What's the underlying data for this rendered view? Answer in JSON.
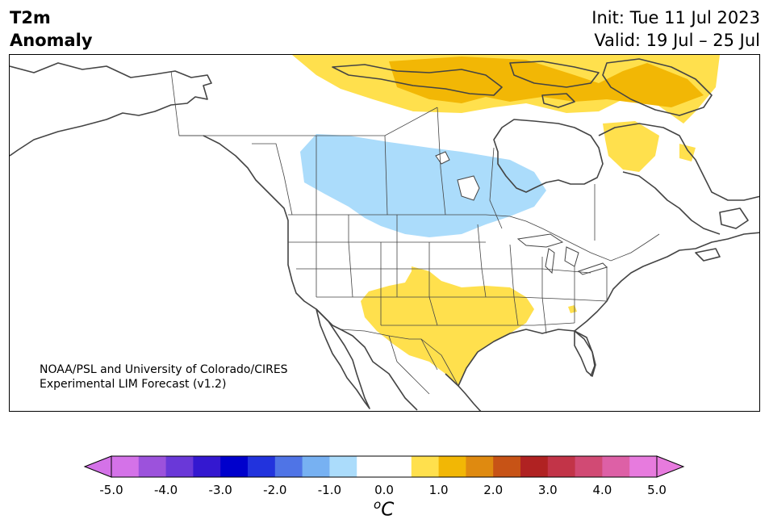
{
  "title": {
    "line1": "T2m",
    "line2": "Anomaly"
  },
  "dates": {
    "init": "Init: Tue 11 Jul 2023",
    "valid": "Valid: 19 Jul – 25 Jul"
  },
  "credit": {
    "line1": "NOAA/PSL and University of Colorado/CIRES",
    "line2": "Experimental LIM Forecast (v1.2)"
  },
  "colorbar": {
    "unit_base": "C",
    "unit_sup": "o",
    "ticks": [
      "-5.0",
      "-4.0",
      "-3.0",
      "-2.0",
      "-1.0",
      "0.0",
      "1.0",
      "2.0",
      "3.0",
      "4.0",
      "5.0"
    ],
    "colors": [
      "#d472e8",
      "#9c52dc",
      "#6a38d8",
      "#3418d0",
      "#0000cc",
      "#2233dd",
      "#4f74e6",
      "#77b1f2",
      "#abdcfb",
      "#ffffff",
      "#ffffff",
      "#ffe04d",
      "#f2b705",
      "#df8a10",
      "#c75316",
      "#b02222",
      "#c23448",
      "#d14a74",
      "#dd60a6",
      "#e77bde"
    ],
    "extend_low_color": "#d472e8",
    "extend_high_color": "#e77bde"
  },
  "anomaly_colors": {
    "cool": "#abdcfb",
    "warm1": "#ffe04d",
    "warm2": "#f2b705"
  }
}
